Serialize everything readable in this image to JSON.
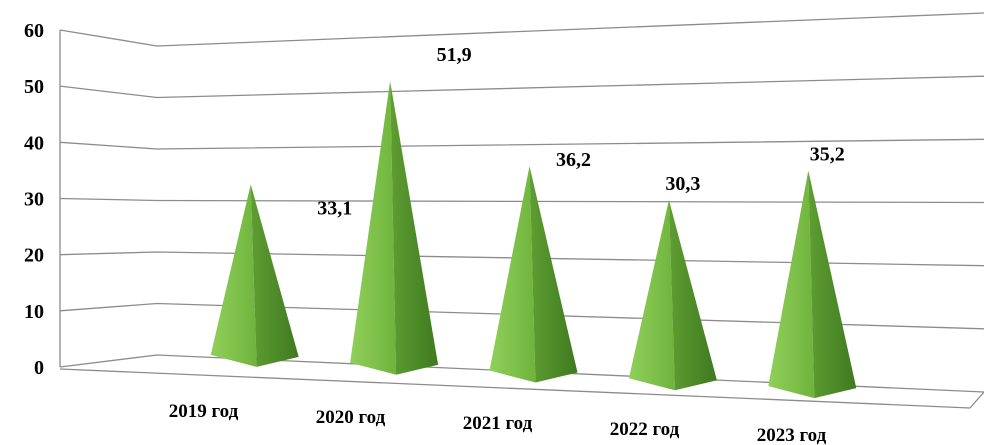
{
  "chart_data": {
    "type": "bar",
    "bar_shape": "pyramid",
    "categories": [
      "2019 год",
      "2020 год",
      "2021 год",
      "2022 год",
      "2023 год"
    ],
    "values": [
      33.1,
      51.9,
      36.2,
      30.3,
      35.2
    ],
    "value_labels": [
      "33,1",
      "51,9",
      "36,2",
      "30,3",
      "35,2"
    ],
    "yticks": [
      "0",
      "10",
      "20",
      "30",
      "40",
      "50",
      "60"
    ],
    "ylim": [
      0,
      60
    ],
    "grid": true,
    "legend": "none",
    "title": "",
    "xlabel": "",
    "ylabel": "",
    "colors": {
      "bar_light": "#8fd05a",
      "bar_mid": "#73b83f",
      "bar_dark": "#4f8a2a",
      "grid": "#8c8c8c",
      "text": "#000000"
    }
  }
}
